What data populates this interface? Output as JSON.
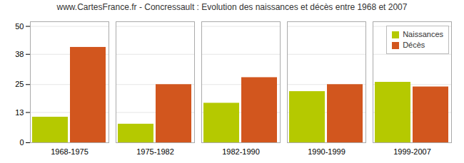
{
  "chart_data": {
    "type": "bar",
    "title": "www.CartesFrance.fr - Concressault : Evolution des naissances et décès entre 1968 et 2007",
    "categories": [
      "1968-1975",
      "1975-1982",
      "1982-1990",
      "1990-1999",
      "1999-2007"
    ],
    "series": [
      {
        "name": "Naissances",
        "color": "#b5c900",
        "values": [
          11,
          8,
          17,
          22,
          26
        ]
      },
      {
        "name": "Décès",
        "color": "#d2561e",
        "values": [
          41,
          25,
          28,
          25,
          24
        ]
      }
    ],
    "ylim": [
      0,
      52
    ],
    "yticks": [
      0,
      13,
      25,
      38,
      50
    ],
    "grid": true,
    "legend": "upper right"
  }
}
